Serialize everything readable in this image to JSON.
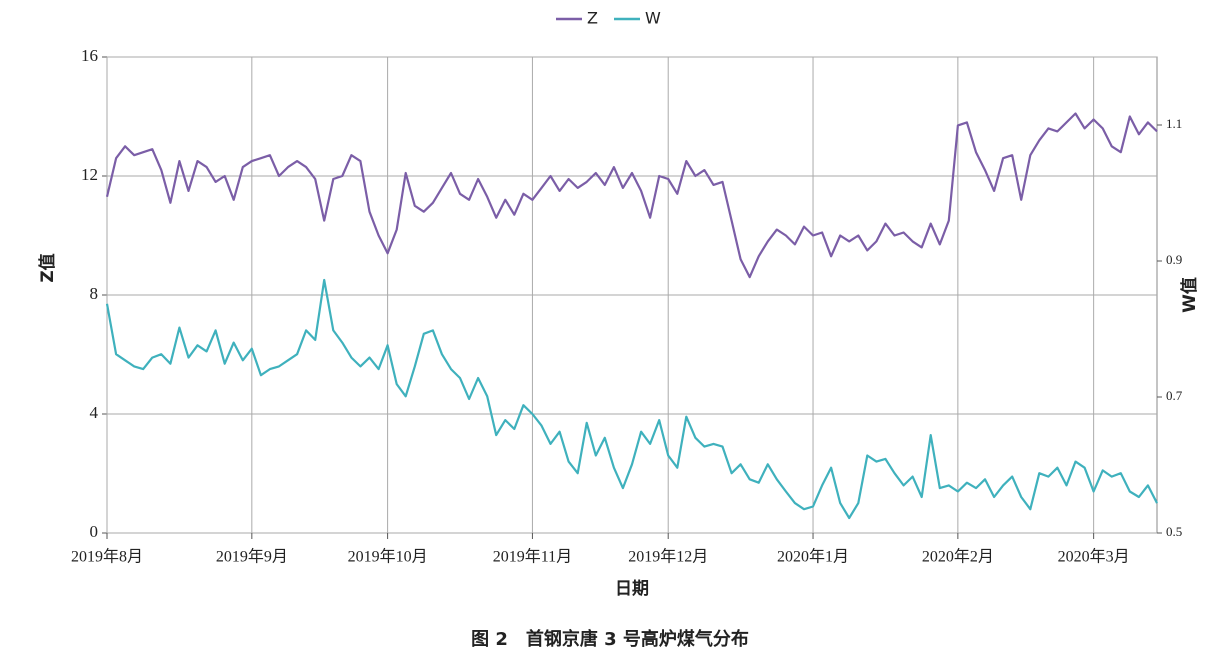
{
  "chart_data": {
    "type": "line",
    "x_label": "日期",
    "y_label": "Z值",
    "y2_label": "W值",
    "caption": "图 2　首钢京唐 3 号高炉煤气分布",
    "categories": [
      "2019年8月",
      null,
      null,
      null,
      null,
      null,
      null,
      null,
      null,
      null,
      null,
      null,
      null,
      null,
      null,
      null,
      "2019年9月",
      null,
      null,
      null,
      null,
      null,
      null,
      null,
      null,
      null,
      null,
      null,
      null,
      null,
      null,
      "2019年10月",
      null,
      null,
      null,
      null,
      null,
      null,
      null,
      null,
      null,
      null,
      null,
      null,
      null,
      null,
      null,
      "2019年11月",
      null,
      null,
      null,
      null,
      null,
      null,
      null,
      null,
      null,
      null,
      null,
      null,
      null,
      null,
      "2019年12月",
      null,
      null,
      null,
      null,
      null,
      null,
      null,
      null,
      null,
      null,
      null,
      null,
      null,
      null,
      null,
      "2020年1月",
      null,
      null,
      null,
      null,
      null,
      null,
      null,
      null,
      null,
      null,
      null,
      null,
      null,
      null,
      null,
      "2020年2月",
      null,
      null,
      null,
      null,
      null,
      null,
      null,
      null,
      null,
      null,
      null,
      null,
      null,
      null,
      "2020年3月",
      null,
      null,
      null,
      null,
      null,
      null,
      null
    ],
    "series": [
      {
        "name": "Z",
        "color": "#7b5ea7",
        "values": [
          11.3,
          12.6,
          13.0,
          12.7,
          12.8,
          12.9,
          12.2,
          11.1,
          12.5,
          11.5,
          12.5,
          12.3,
          11.8,
          12.0,
          11.2,
          12.3,
          12.5,
          12.6,
          12.7,
          12.0,
          12.3,
          12.5,
          12.3,
          11.9,
          10.5,
          11.9,
          12.0,
          12.7,
          12.5,
          10.8,
          10.0,
          9.4,
          10.2,
          12.1,
          11.0,
          10.8,
          11.1,
          11.6,
          12.1,
          11.4,
          11.2,
          11.9,
          11.3,
          10.6,
          11.2,
          10.7,
          11.4,
          11.2,
          11.6,
          12.0,
          11.5,
          11.9,
          11.6,
          11.8,
          12.1,
          11.7,
          12.3,
          11.6,
          12.1,
          11.5,
          10.6,
          12.0,
          11.9,
          11.4,
          12.5,
          12.0,
          12.2,
          11.7,
          11.8,
          10.5,
          9.2,
          8.6,
          9.3,
          9.8,
          10.2,
          10.0,
          9.7,
          10.3,
          10.0,
          10.1,
          9.3,
          10.0,
          9.8,
          10.0,
          9.5,
          9.8,
          10.4,
          10.0,
          10.1,
          9.8,
          9.6,
          10.4,
          9.7,
          10.5,
          13.7,
          13.8,
          12.8,
          12.2,
          11.5,
          12.6,
          12.7,
          11.2,
          12.7,
          13.2,
          13.6,
          13.5,
          13.8,
          14.1,
          13.6,
          13.9,
          13.6,
          13.0,
          12.8,
          14.0,
          13.4,
          13.8,
          13.5
        ]
      },
      {
        "name": "W",
        "color": "#3fb1bd",
        "axis": "y2",
        "values": [
          0.837,
          0.763,
          0.754,
          0.745,
          0.741,
          0.758,
          0.763,
          0.749,
          0.802,
          0.758,
          0.776,
          0.767,
          0.798,
          0.749,
          0.78,
          0.754,
          0.771,
          0.732,
          0.741,
          0.745,
          0.754,
          0.763,
          0.798,
          0.784,
          0.872,
          0.798,
          0.78,
          0.758,
          0.745,
          0.758,
          0.741,
          0.776,
          0.719,
          0.701,
          0.745,
          0.793,
          0.798,
          0.763,
          0.741,
          0.728,
          0.697,
          0.728,
          0.701,
          0.644,
          0.666,
          0.653,
          0.688,
          0.675,
          0.658,
          0.631,
          0.649,
          0.605,
          0.588,
          0.662,
          0.614,
          0.64,
          0.596,
          0.566,
          0.601,
          0.649,
          0.631,
          0.666,
          0.614,
          0.596,
          0.671,
          0.64,
          0.627,
          0.631,
          0.627,
          0.588,
          0.601,
          0.579,
          0.574,
          0.601,
          0.579,
          0.561,
          0.544,
          0.535,
          0.539,
          0.57,
          0.596,
          0.544,
          0.522,
          0.544,
          0.614,
          0.605,
          0.609,
          0.588,
          0.57,
          0.583,
          0.553,
          0.644,
          0.566,
          0.57,
          0.561,
          0.574,
          0.566,
          0.579,
          0.553,
          0.57,
          0.583,
          0.553,
          0.535,
          0.588,
          0.583,
          0.596,
          0.57,
          0.605,
          0.596,
          0.561,
          0.592,
          0.583,
          0.588,
          0.561,
          0.553,
          0.57,
          0.544
        ]
      }
    ],
    "ylim": [
      0,
      16
    ],
    "yticks": [
      0,
      4,
      8,
      12,
      16
    ],
    "y2lim": [
      0.5,
      1.2
    ],
    "y2ticks": [
      0.5,
      0.7,
      0.9,
      1.1
    ],
    "grid": true,
    "legend": "top"
  }
}
